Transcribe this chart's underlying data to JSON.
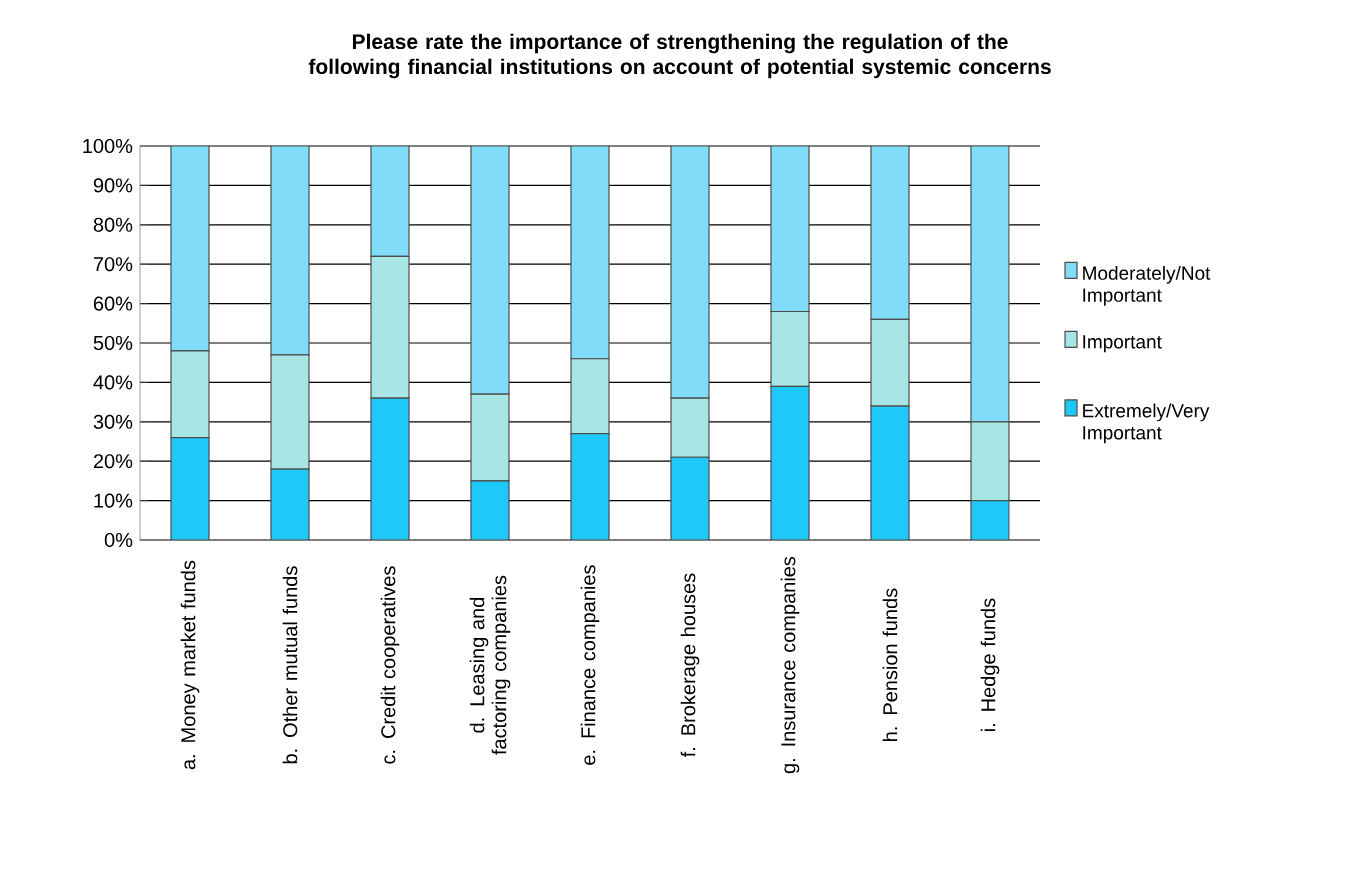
{
  "chart_data": {
    "type": "bar",
    "title": "Please rate the importance of strengthening the regulation of the following financial institutions on account of potential systemic concerns",
    "categories": [
      "a. Money market funds",
      "b. Other mutual funds",
      "c. Credit cooperatives",
      "d. Leasing and factoring companies",
      "e. Finance companies",
      "f. Brokerage houses",
      "g. Insurance companies",
      "h. Pension funds",
      "i. Hedge funds"
    ],
    "series": [
      {
        "name": "Extremely/Very Important",
        "color": "#1ec8f8",
        "values": [
          26,
          18,
          36,
          15,
          27,
          21,
          39,
          34,
          10
        ]
      },
      {
        "name": "Important",
        "color": "#a8e6e6",
        "values": [
          22,
          29,
          36,
          22,
          19,
          15,
          19,
          22,
          20
        ]
      },
      {
        "name": "Moderately/Not Important",
        "color": "#80dcf8",
        "values": [
          52,
          53,
          28,
          63,
          54,
          64,
          42,
          44,
          70
        ]
      }
    ],
    "stacked": true,
    "ylim": [
      0,
      100
    ],
    "yticks": [
      {
        "value": 0,
        "label": "0%"
      },
      {
        "value": 10,
        "label": "10%"
      },
      {
        "value": 20,
        "label": "20%"
      },
      {
        "value": 30,
        "label": "30%"
      },
      {
        "value": 40,
        "label": "40%"
      },
      {
        "value": 50,
        "label": "50%"
      },
      {
        "value": 60,
        "label": "60%"
      },
      {
        "value": 70,
        "label": "70%"
      },
      {
        "value": 80,
        "label": "80%"
      },
      {
        "value": 90,
        "label": "90%"
      },
      {
        "value": 100,
        "label": "100%"
      }
    ],
    "grid": "y",
    "legend": "right"
  }
}
